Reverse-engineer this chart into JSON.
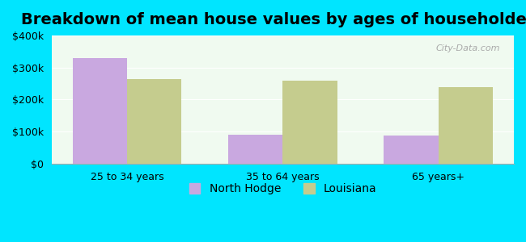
{
  "title": "Breakdown of mean house values by ages of householders",
  "categories": [
    "25 to 34 years",
    "35 to 64 years",
    "65 years+"
  ],
  "north_hodge": [
    330000,
    90000,
    88000
  ],
  "louisiana": [
    265000,
    258000,
    238000
  ],
  "north_hodge_color": "#c9a8e0",
  "louisiana_color": "#c5cc8e",
  "ylim": [
    0,
    400000
  ],
  "yticks": [
    0,
    100000,
    200000,
    300000,
    400000
  ],
  "ytick_labels": [
    "$0",
    "$100k",
    "$200k",
    "$300k",
    "$400k"
  ],
  "bar_width": 0.35,
  "background_outer": "#00e5ff",
  "background_inner": "#f0faf0",
  "legend_labels": [
    "North Hodge",
    "Louisiana"
  ],
  "title_fontsize": 14,
  "tick_fontsize": 9,
  "legend_fontsize": 10
}
